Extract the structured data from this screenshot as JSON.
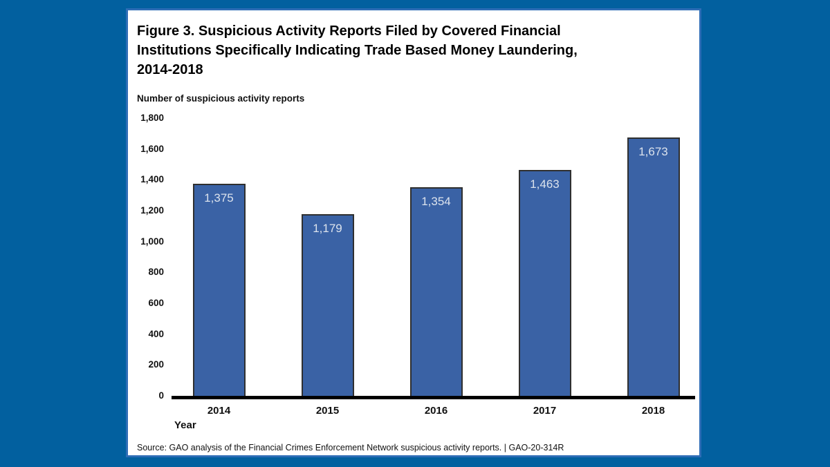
{
  "page": {
    "background_color": "#02609f"
  },
  "card": {
    "background_color": "#ffffff",
    "border_color": "#2e6db6"
  },
  "figure": {
    "title_lines": [
      "Figure 3. Suspicious Activity Reports Filed by Covered Financial",
      "Institutions Specifically Indicating Trade Based Money Laundering,",
      "2014-2018"
    ],
    "y_axis_title": "Number of suspicious activity reports",
    "x_axis_title": "Year",
    "source": "Source: GAO analysis of the Financial Crimes Enforcement Network suspicious activity reports.  |  GAO-20-314R"
  },
  "chart_data": {
    "type": "bar",
    "title": "Figure 3. Suspicious Activity Reports Filed by Covered Financial Institutions Specifically Indicating Trade Based Money Laundering, 2014-2018",
    "categories": [
      "2014",
      "2015",
      "2016",
      "2017",
      "2018"
    ],
    "values": [
      1375,
      1179,
      1354,
      1463,
      1673
    ],
    "value_labels": [
      "1,375",
      "1,179",
      "1,354",
      "1,463",
      "1,673"
    ],
    "xlabel": "Year",
    "ylabel": "Number of suspicious activity reports",
    "ylim": [
      0,
      1800
    ],
    "y_tick_step": 200,
    "y_tick_labels": [
      "1,800",
      "1,600",
      "1,400",
      "1,200",
      "1,000",
      "800",
      "600",
      "400",
      "200",
      "0"
    ],
    "grid": false,
    "legend": false,
    "bar_color": "#3a62a5",
    "bar_border_color": "#2f2f2f",
    "value_label_color": "#dce3ed",
    "axis_line_color": "#000000"
  }
}
